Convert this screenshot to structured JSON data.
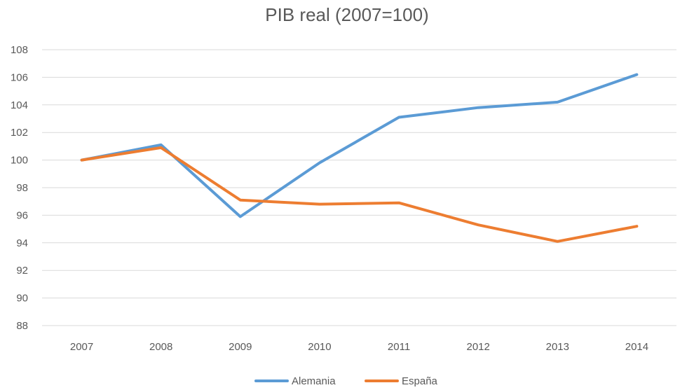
{
  "chart_data": {
    "type": "line",
    "title": "PIB real (2007=100)",
    "xlabel": "",
    "ylabel": "",
    "categories": [
      "2007",
      "2008",
      "2009",
      "2010",
      "2011",
      "2012",
      "2013",
      "2014"
    ],
    "ylim": [
      88,
      108
    ],
    "yticks": [
      "88",
      "90",
      "92",
      "94",
      "96",
      "98",
      "100",
      "102",
      "104",
      "106",
      "108"
    ],
    "grid": "horizontal",
    "legend": "bottom",
    "series": [
      {
        "name": "Alemania",
        "color": "#5b9bd5",
        "values": [
          100,
          101.1,
          95.9,
          99.8,
          103.1,
          103.8,
          104.2,
          106.2
        ]
      },
      {
        "name": "España",
        "color": "#ed7d31",
        "values": [
          100,
          100.9,
          97.1,
          96.8,
          96.9,
          95.3,
          94.1,
          95.2
        ]
      }
    ]
  }
}
